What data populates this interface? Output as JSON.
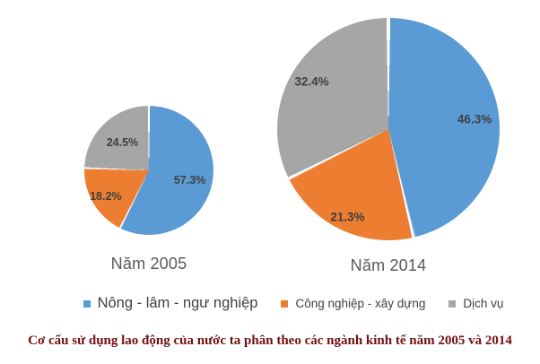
{
  "chart_data": [
    {
      "type": "pie",
      "title": "Năm 2005",
      "labels": [
        "Nông - lâm - ngư nghiệp",
        "Công nghiệp - xây dựng",
        "Dịch vụ"
      ],
      "values": [
        57.3,
        18.2,
        24.5
      ],
      "data_labels": [
        "57.3%",
        "18.2%",
        "24.5%"
      ],
      "colors": [
        "#5B9BD5",
        "#ED7D31",
        "#A6A6A6"
      ],
      "layout": {
        "start_angle_deg": 0,
        "direction": "clockwise",
        "slice_border_color": "#FFFFFF",
        "label_radius": [
          0.65,
          0.78,
          0.59
        ],
        "label_font_px": 12.5
      }
    },
    {
      "type": "pie",
      "title": "Năm 2014",
      "labels": [
        "Nông - lâm - ngư nghiệp",
        "Công nghiệp - xây dựng",
        "Dịch vụ"
      ],
      "values": [
        46.3,
        21.3,
        32.4
      ],
      "data_labels": [
        "46.3%",
        "21.3%",
        "32.4%"
      ],
      "colors": [
        "#5B9BD5",
        "#ED7D31",
        "#A6A6A6"
      ],
      "layout": {
        "start_angle_deg": 0,
        "direction": "clockwise",
        "slice_border_color": "#FFFFFF",
        "label_radius": [
          0.78,
          0.87,
          0.81
        ],
        "label_font_px": 13.5
      }
    }
  ],
  "legend": {
    "position": "bottom",
    "items": [
      {
        "label": "Nông - lâm - ngư nghiệp",
        "color": "#5B9BD5"
      },
      {
        "label": "Công nghiệp - xây dựng",
        "color": "#ED7D31"
      },
      {
        "label": "Dịch vụ",
        "color": "#A6A6A6"
      }
    ]
  },
  "caption": "Cơ cấu sử dụng lao động của nước ta phân theo các ngành kinh tế năm 2005 và 2014",
  "colors": {
    "series_blue": "#5B9BD5",
    "series_orange": "#ED7D31",
    "series_gray": "#A6A6A6",
    "title_text": "#595959",
    "data_label_text": "#3F3F3F",
    "caption_text": "#701012",
    "background": "#FFFFFF"
  }
}
